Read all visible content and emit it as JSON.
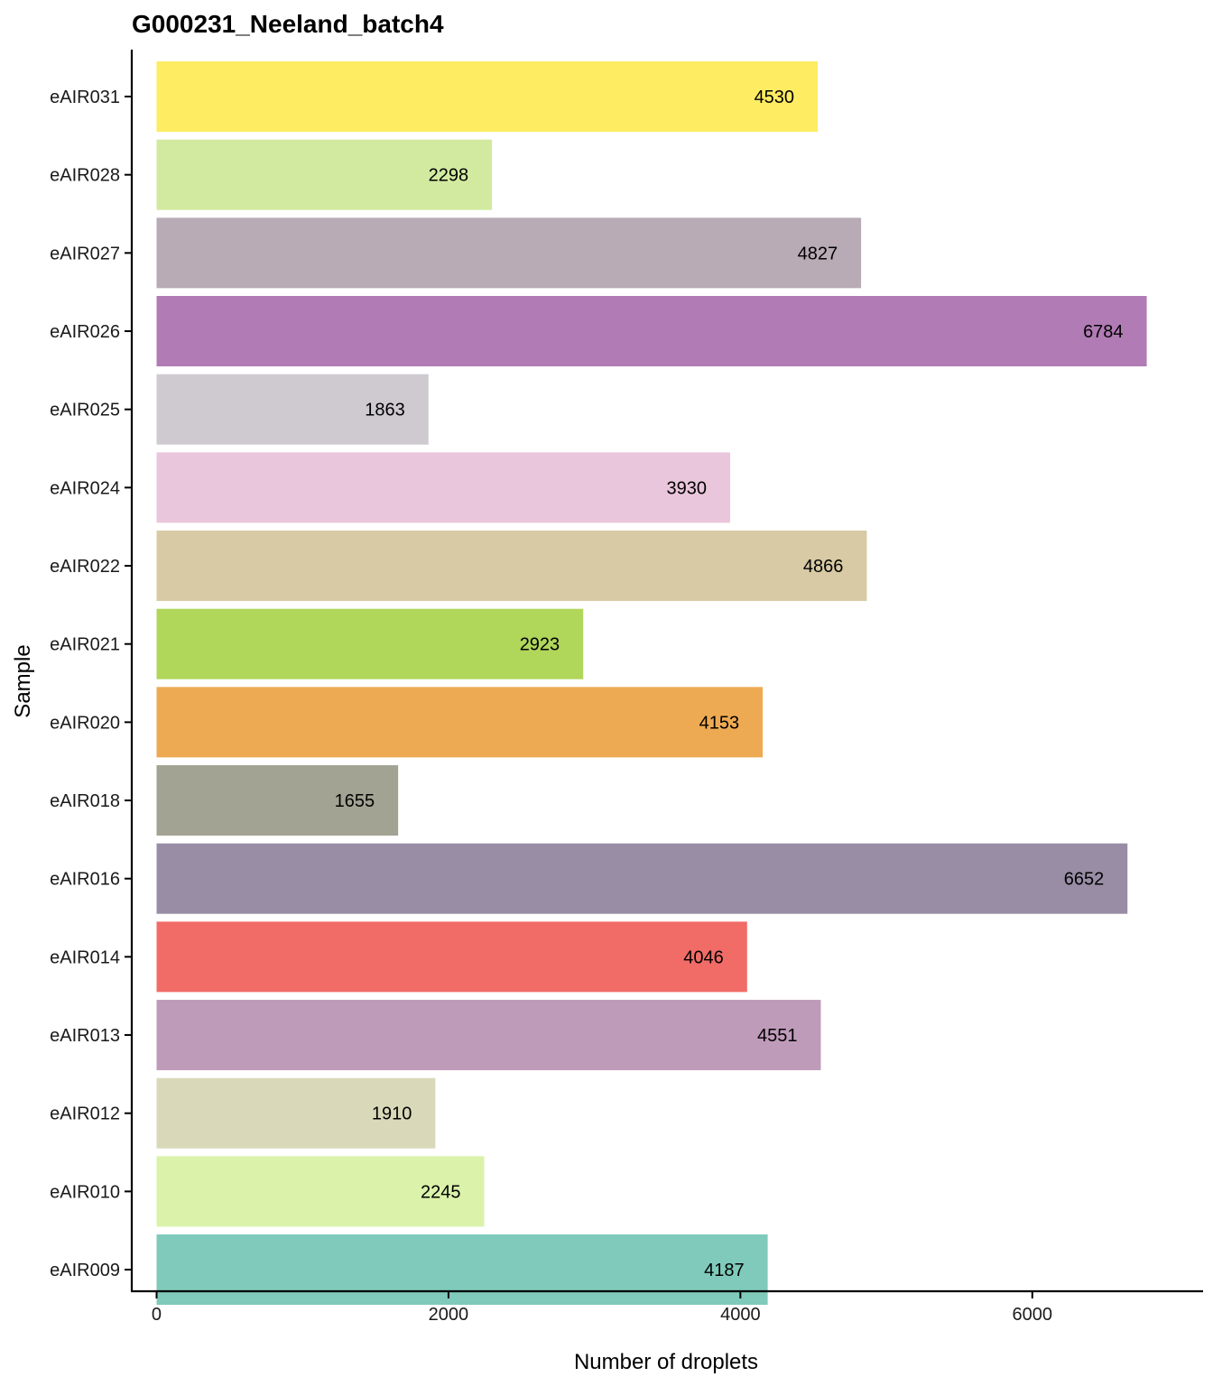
{
  "chart_data": {
    "type": "bar",
    "orientation": "horizontal",
    "title": "G000231_Neeland_batch4",
    "xlabel": "Number of droplets",
    "ylabel": "Sample",
    "xlim": [
      -170,
      7170
    ],
    "xticks": [
      0,
      2000,
      4000,
      6000
    ],
    "xtick_labels": [
      "0",
      "2000",
      "4000",
      "6000"
    ],
    "categories": [
      "eAIR031",
      "eAIR028",
      "eAIR027",
      "eAIR026",
      "eAIR025",
      "eAIR024",
      "eAIR022",
      "eAIR021",
      "eAIR020",
      "eAIR018",
      "eAIR016",
      "eAIR014",
      "eAIR013",
      "eAIR012",
      "eAIR010",
      "eAIR009"
    ],
    "values": [
      4530,
      2298,
      4827,
      6784,
      1863,
      3930,
      4866,
      2923,
      4153,
      1655,
      6652,
      4046,
      4551,
      1910,
      2245,
      4187
    ],
    "data_labels": [
      "4530",
      "2298",
      "4827",
      "6784",
      "1863",
      "3930",
      "4866",
      "2923",
      "4153",
      "1655",
      "6652",
      "4046",
      "4551",
      "1910",
      "2245",
      "4187"
    ],
    "colors": [
      "#FEEC62",
      "#D2EAA0",
      "#B8ABB5",
      "#B17BB5",
      "#CECAD0",
      "#EAC6DC",
      "#D7CAA4",
      "#B0D65A",
      "#EEAA52",
      "#A3A394",
      "#988DA5",
      "#F16C67",
      "#BF9BBA",
      "#D9D9BA",
      "#DAF2AA",
      "#7FCABB"
    ],
    "grid": false,
    "legend": "none"
  }
}
